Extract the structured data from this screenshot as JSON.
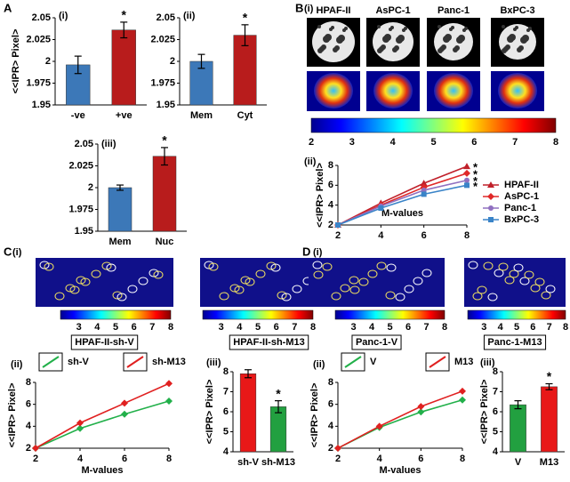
{
  "panel_labels": [
    "A",
    "B",
    "C",
    "D"
  ],
  "images": [
    {
      "label": "(i)",
      "titles": [
        "HPAF-II",
        "AsPC-1",
        "Panc-1",
        "BxPC-3"
      ],
      "colorbar_ticks": [
        2,
        3,
        4,
        5,
        6,
        7,
        8
      ],
      "colorbar_lim": [
        2,
        8
      ]
    },
    {
      "label": "(i)",
      "captions": [
        "HPAF-II-sh-V",
        "HPAF-II-sh-M13"
      ],
      "colorbar_ticks": [
        3,
        4,
        5,
        6,
        7,
        8
      ],
      "colorbar_lim": [
        2,
        8
      ]
    },
    {
      "label": "(i)",
      "captions": [
        "Panc-1-V",
        "Panc-1-M13"
      ],
      "colorbar_ticks": [
        3,
        4,
        5,
        6,
        7,
        8
      ],
      "colorbar_lim": [
        2,
        8
      ]
    }
  ],
  "chart_data": [
    {
      "type": "bar",
      "label": "(i)",
      "ylabel": "<<IPR> Pixel>",
      "categories": [
        "-ve",
        "+ve"
      ],
      "values": [
        1.996,
        2.036
      ],
      "errors": [
        0.01,
        0.009
      ],
      "colors": [
        "#3c78b8",
        "#b81c1c"
      ],
      "ylim": [
        1.95,
        2.05
      ],
      "yticks": [
        1.95,
        1.975,
        2,
        2.025,
        2.05
      ],
      "annotation": {
        "category": "+ve",
        "text": "*"
      }
    },
    {
      "type": "bar",
      "label": "(ii)",
      "categories": [
        "Mem",
        "Cyt"
      ],
      "values": [
        2.0,
        2.03
      ],
      "errors": [
        0.008,
        0.012
      ],
      "colors": [
        "#3c78b8",
        "#b81c1c"
      ],
      "ylim": [
        1.95,
        2.05
      ],
      "yticks": [
        1.95,
        1.975,
        2,
        2.025,
        2.05
      ],
      "annotation": {
        "category": "Cyt",
        "text": "*"
      }
    },
    {
      "type": "bar",
      "label": "(iii)",
      "categories": [
        "Mem",
        "Nuc"
      ],
      "values": [
        2.0,
        2.036
      ],
      "errors": [
        0.003,
        0.01
      ],
      "colors": [
        "#3c78b8",
        "#b81c1c"
      ],
      "ylim": [
        1.95,
        2.05
      ],
      "yticks": [
        1.95,
        1.975,
        2,
        2.025,
        2.05
      ],
      "annotation": {
        "category": "Nuc",
        "text": "*"
      }
    },
    {
      "type": "line",
      "label": "(ii)",
      "ylabel": "<<IPR> Pixel>",
      "xlabel": "M-values",
      "legend": "right",
      "x": [
        2,
        4,
        6,
        8
      ],
      "xlim": [
        2,
        8
      ],
      "xticks": [
        2,
        4,
        6,
        8
      ],
      "ylim": [
        2,
        8
      ],
      "yticks": [
        2,
        4,
        6,
        8
      ],
      "series": [
        {
          "name": "HPAF-II",
          "color": "#c0202a",
          "marker": "triangle",
          "values": [
            2,
            4.2,
            6.2,
            7.9
          ],
          "annotation": "*"
        },
        {
          "name": "AsPC-1",
          "color": "#e02828",
          "marker": "diamond",
          "values": [
            2,
            4.0,
            5.8,
            7.2
          ],
          "annotation": "*"
        },
        {
          "name": "Panc-1",
          "color": "#9070c0",
          "marker": "circle",
          "values": [
            2,
            3.9,
            5.5,
            6.5
          ],
          "annotation": "*"
        },
        {
          "name": "BxPC-3",
          "color": "#3a84c8",
          "marker": "square",
          "values": [
            2,
            3.7,
            5.1,
            6.0
          ],
          "annotation": "*"
        }
      ]
    },
    {
      "type": "line",
      "label": "(ii)",
      "ylabel": "<<IPR> Pixel>",
      "xlabel": "M-values",
      "legend": "top",
      "x": [
        2,
        4,
        6,
        8
      ],
      "xlim": [
        2,
        8
      ],
      "xticks": [
        2,
        4,
        6,
        8
      ],
      "ylim": [
        2,
        8
      ],
      "yticks": [
        2,
        4,
        6,
        8
      ],
      "series": [
        {
          "name": "sh-V",
          "color": "#22b04a",
          "marker": "diamond",
          "values": [
            2,
            3.8,
            5.1,
            6.3
          ]
        },
        {
          "name": "sh-M13",
          "color": "#e02020",
          "marker": "diamond",
          "values": [
            2,
            4.3,
            6.1,
            7.9
          ]
        }
      ]
    },
    {
      "type": "bar",
      "label": "(iii)",
      "ylabel": "<<IPR> Pixel>",
      "categories": [
        "sh-V",
        "sh-M13"
      ],
      "values": [
        7.9,
        6.25
      ],
      "errors": [
        0.2,
        0.3
      ],
      "colors": [
        "#e81818",
        "#22a040"
      ],
      "ylim": [
        4,
        8
      ],
      "yticks": [
        4,
        5,
        6,
        7,
        8
      ],
      "annotation": {
        "category": "sh-M13",
        "text": "*"
      }
    },
    {
      "type": "line",
      "label": "(ii)",
      "ylabel": "<<IPR> Pixel>",
      "xlabel": "M-values",
      "legend": "top",
      "x": [
        2,
        4,
        6,
        8
      ],
      "xlim": [
        2,
        8
      ],
      "xticks": [
        2,
        4,
        6,
        8
      ],
      "ylim": [
        2,
        8
      ],
      "yticks": [
        2,
        4,
        6,
        8
      ],
      "series": [
        {
          "name": "V",
          "color": "#22b04a",
          "marker": "diamond",
          "values": [
            2,
            3.9,
            5.3,
            6.4
          ]
        },
        {
          "name": "M13",
          "color": "#e02020",
          "marker": "diamond",
          "values": [
            2,
            4.0,
            5.8,
            7.2
          ]
        }
      ]
    },
    {
      "type": "bar",
      "label": "(iii)",
      "ylabel": "<<IPR> Pixel>",
      "categories": [
        "V",
        "M13"
      ],
      "values": [
        6.35,
        7.25
      ],
      "errors": [
        0.2,
        0.15
      ],
      "colors": [
        "#22a040",
        "#e81818"
      ],
      "ylim": [
        4,
        8
      ],
      "yticks": [
        4,
        5,
        6,
        7,
        8
      ],
      "annotation": {
        "category": "M13",
        "text": "*"
      }
    }
  ]
}
